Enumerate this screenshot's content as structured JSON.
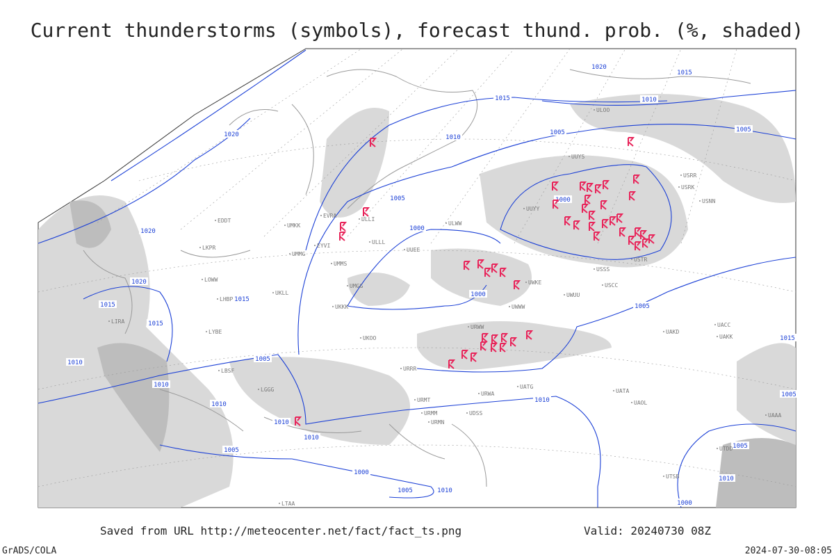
{
  "header": {
    "title": "Current thunderstorms (symbols), forecast thund. prob. (%, shaded)"
  },
  "footer": {
    "source": "Saved from URL http://meteocenter.net/fact/fact_ts.png",
    "valid": "Valid: 20240730 08Z",
    "software": "GrADS/COLA",
    "timestamp": "2024-07-30-08:05"
  },
  "isobar_labels": [
    "1020",
    "1015",
    "1010",
    "1005",
    "1020",
    "1015",
    "1010",
    "1005",
    "1000",
    "1020",
    "1020",
    "1015",
    "1015",
    "1015",
    "1010",
    "1010",
    "1010",
    "1005",
    "1005",
    "1000",
    "1000",
    "1005",
    "1010",
    "1010",
    "1015",
    "1010",
    "1005",
    "1000",
    "1005",
    "1005",
    "1010",
    "1005",
    "1010",
    "1000"
  ],
  "stations": [
    "ULOO",
    "UUYY",
    "UUYS",
    "USRR",
    "USNN",
    "USRK",
    "USSS",
    "USTR",
    "USCC",
    "UWKE",
    "UWUU",
    "UWWW",
    "URWW",
    "URWA",
    "URMT",
    "URMM",
    "URMN",
    "URRR",
    "UKOO",
    "UKKK",
    "UMMS",
    "UMGG",
    "ULLL",
    "UMKK",
    "EDDT",
    "LKPR",
    "LOWW",
    "LHBP",
    "LYBE",
    "LBSF",
    "LGGG",
    "LTAA",
    "UATG",
    "UATA",
    "UAOL",
    "UACC",
    "UAKK",
    "UAKD",
    "UTDD",
    "UTSB",
    "UAAA",
    "UUEE",
    "ULWW",
    "ULLI",
    "EVRA",
    "EYVI",
    "UMMG",
    "UKLL",
    "UDSS",
    "LIRA"
  ]
}
